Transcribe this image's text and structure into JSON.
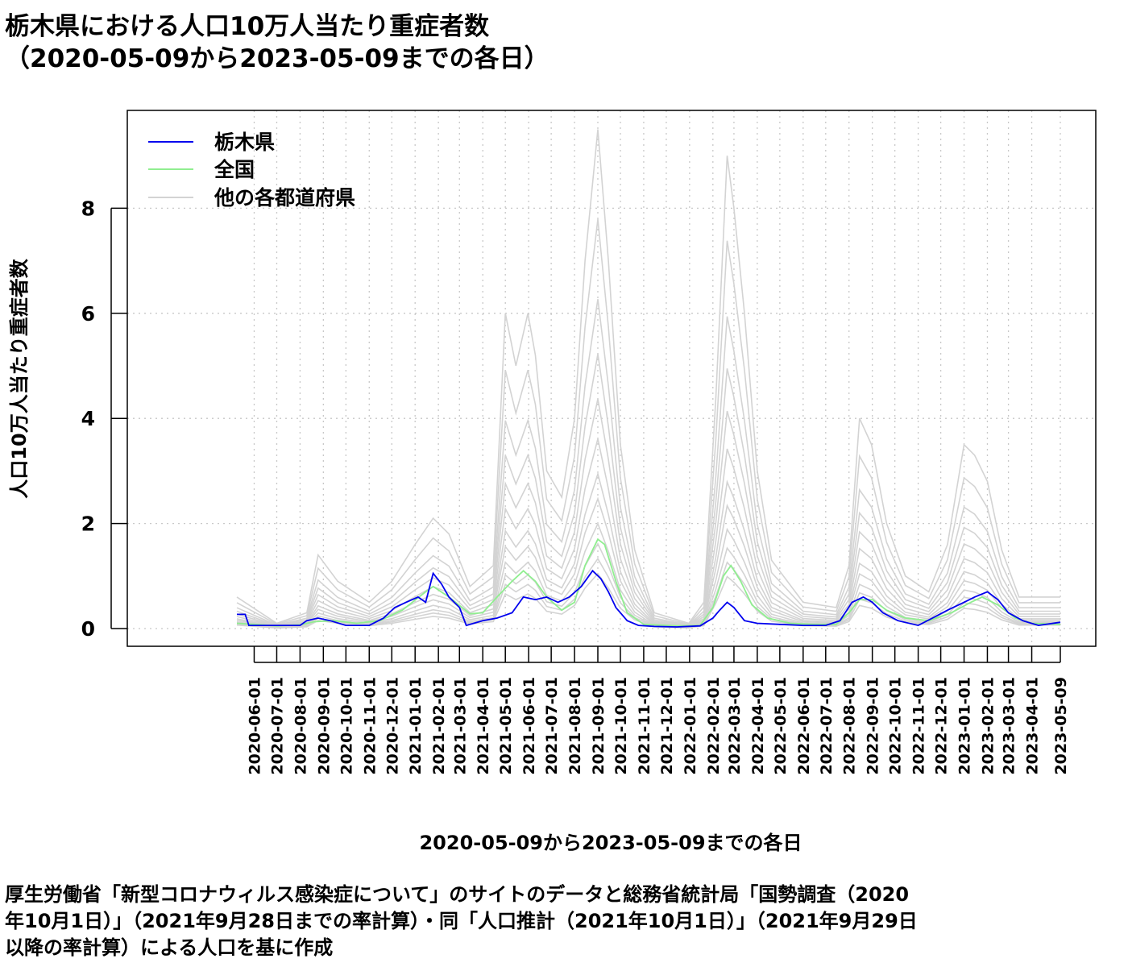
{
  "title": {
    "line1": "栃木県における人口10万人当たり重症者数",
    "line2": "（2020-05-09から2023-05-09までの各日）"
  },
  "caption": {
    "line1": "厚生労働省「新型コロナウィルス感染症について」のサイトのデータと総務省統計局「国勢調査（2020",
    "line2": "年10月1日）」（2021年9月28日までの率計算）・同「人口推計（2021年10月1日）」（2021年9月29日",
    "line3": "以降の率計算）による人口を基に作成"
  },
  "colors": {
    "tochigi": "#0000ee",
    "national": "#90ee90",
    "others": "#d3d3d3",
    "grid": "#c8c8c8"
  },
  "chart_data": {
    "type": "line",
    "xlabel": "2020-05-09から2023-05-09までの各日",
    "ylabel": "人口10万人当たり重症者数",
    "ylim": [
      0,
      9.7
    ],
    "yticks": [
      0,
      2,
      4,
      6,
      8
    ],
    "x_range": [
      "2020-05-09",
      "2023-05-09"
    ],
    "x_ticks": [
      "2020-06-01",
      "2020-07-01",
      "2020-08-01",
      "2020-09-01",
      "2020-10-01",
      "2020-11-01",
      "2020-12-01",
      "2021-01-01",
      "2021-02-01",
      "2021-03-01",
      "2021-04-01",
      "2021-05-01",
      "2021-06-01",
      "2021-07-01",
      "2021-08-01",
      "2021-09-01",
      "2021-10-01",
      "2021-11-01",
      "2021-12-01",
      "2022-01-01",
      "2022-02-01",
      "2022-03-01",
      "2022-04-01",
      "2022-05-01",
      "2022-06-01",
      "2022-07-01",
      "2022-08-01",
      "2022-09-01",
      "2022-10-01",
      "2022-11-01",
      "2022-12-01",
      "2023-01-01",
      "2023-02-01",
      "2023-03-01",
      "2023-04-01",
      "2023-05-09"
    ],
    "grid": true,
    "legend": {
      "placement": "top-left",
      "entries": [
        "栃木県",
        "全国",
        "他の各都道府県"
      ]
    },
    "series": [
      {
        "name": "栃木県",
        "x": [
          "2020-05-09",
          "2020-05-20",
          "2020-05-25",
          "2020-06-05",
          "2020-07-01",
          "2020-08-01",
          "2020-08-10",
          "2020-08-25",
          "2020-09-10",
          "2020-10-01",
          "2020-11-01",
          "2020-11-20",
          "2020-12-05",
          "2020-12-20",
          "2021-01-05",
          "2021-01-15",
          "2021-01-25",
          "2021-02-05",
          "2021-02-15",
          "2021-03-01",
          "2021-03-10",
          "2021-04-01",
          "2021-04-20",
          "2021-05-10",
          "2021-05-25",
          "2021-06-10",
          "2021-06-25",
          "2021-07-10",
          "2021-07-25",
          "2021-08-10",
          "2021-08-25",
          "2021-09-05",
          "2021-09-15",
          "2021-09-25",
          "2021-10-10",
          "2021-10-25",
          "2021-11-15",
          "2021-12-15",
          "2022-01-15",
          "2022-02-01",
          "2022-02-10",
          "2022-02-20",
          "2022-03-01",
          "2022-03-15",
          "2022-04-01",
          "2022-05-01",
          "2022-06-01",
          "2022-07-01",
          "2022-07-20",
          "2022-08-05",
          "2022-08-20",
          "2022-09-01",
          "2022-09-15",
          "2022-10-05",
          "2022-11-01",
          "2022-11-20",
          "2022-12-10",
          "2023-01-01",
          "2023-01-15",
          "2023-02-01",
          "2023-02-15",
          "2023-03-01",
          "2023-03-20",
          "2023-04-10",
          "2023-05-09"
        ],
        "values": [
          0.27,
          0.27,
          0.06,
          0.06,
          0.06,
          0.06,
          0.15,
          0.2,
          0.15,
          0.06,
          0.06,
          0.2,
          0.4,
          0.5,
          0.6,
          0.5,
          1.05,
          0.85,
          0.6,
          0.4,
          0.06,
          0.15,
          0.2,
          0.3,
          0.6,
          0.55,
          0.6,
          0.5,
          0.6,
          0.8,
          1.1,
          0.95,
          0.7,
          0.4,
          0.15,
          0.06,
          0.04,
          0.03,
          0.05,
          0.2,
          0.35,
          0.5,
          0.4,
          0.15,
          0.1,
          0.08,
          0.06,
          0.06,
          0.15,
          0.5,
          0.6,
          0.5,
          0.3,
          0.15,
          0.06,
          0.2,
          0.35,
          0.5,
          0.6,
          0.7,
          0.55,
          0.3,
          0.15,
          0.06,
          0.12
        ]
      },
      {
        "name": "全国",
        "x": [
          "2020-05-09",
          "2020-06-01",
          "2020-07-01",
          "2020-08-01",
          "2020-08-20",
          "2020-09-15",
          "2020-10-15",
          "2020-11-15",
          "2020-12-15",
          "2021-01-15",
          "2021-01-25",
          "2021-02-15",
          "2021-03-15",
          "2021-04-01",
          "2021-04-20",
          "2021-05-10",
          "2021-05-25",
          "2021-06-10",
          "2021-06-25",
          "2021-07-15",
          "2021-08-01",
          "2021-08-15",
          "2021-09-01",
          "2021-09-10",
          "2021-09-25",
          "2021-10-10",
          "2021-11-01",
          "2021-12-15",
          "2022-01-15",
          "2022-02-01",
          "2022-02-15",
          "2022-02-25",
          "2022-03-10",
          "2022-03-25",
          "2022-04-15",
          "2022-05-15",
          "2022-06-15",
          "2022-07-15",
          "2022-08-01",
          "2022-08-15",
          "2022-09-01",
          "2022-09-20",
          "2022-10-15",
          "2022-11-15",
          "2022-12-15",
          "2023-01-10",
          "2023-01-25",
          "2023-02-15",
          "2023-03-10",
          "2023-04-01",
          "2023-05-09"
        ],
        "values": [
          0.1,
          0.08,
          0.05,
          0.07,
          0.13,
          0.15,
          0.1,
          0.15,
          0.35,
          0.7,
          0.8,
          0.6,
          0.28,
          0.3,
          0.6,
          0.9,
          1.1,
          0.9,
          0.6,
          0.35,
          0.5,
          1.2,
          1.7,
          1.6,
          0.9,
          0.3,
          0.08,
          0.05,
          0.06,
          0.4,
          1.0,
          1.2,
          0.9,
          0.45,
          0.2,
          0.1,
          0.08,
          0.08,
          0.3,
          0.55,
          0.55,
          0.35,
          0.2,
          0.15,
          0.3,
          0.5,
          0.6,
          0.45,
          0.2,
          0.1,
          0.08
        ]
      },
      {
        "name": "他の各都道府県",
        "x": [
          "2020-05-09",
          "2020-07-01",
          "2020-08-10",
          "2020-08-25",
          "2020-09-20",
          "2020-11-01",
          "2020-12-01",
          "2021-01-01",
          "2021-01-25",
          "2021-02-15",
          "2021-03-15",
          "2021-04-15",
          "2021-05-01",
          "2021-05-15",
          "2021-05-31",
          "2021-06-10",
          "2021-06-25",
          "2021-07-15",
          "2021-08-01",
          "2021-08-15",
          "2021-09-01",
          "2021-09-15",
          "2021-10-01",
          "2021-10-20",
          "2021-11-15",
          "2021-12-31",
          "2022-01-20",
          "2022-02-05",
          "2022-02-20",
          "2022-03-01",
          "2022-03-15",
          "2022-04-01",
          "2022-04-20",
          "2022-06-01",
          "2022-07-15",
          "2022-08-01",
          "2022-08-15",
          "2022-08-31",
          "2022-09-20",
          "2022-10-15",
          "2022-11-15",
          "2022-12-10",
          "2023-01-01",
          "2023-01-15",
          "2023-02-01",
          "2023-02-20",
          "2023-03-15",
          "2023-05-09"
        ],
        "values": [
          0.6,
          0.1,
          0.3,
          1.4,
          0.9,
          0.5,
          0.9,
          1.6,
          2.1,
          1.8,
          0.8,
          1.2,
          6.0,
          5.0,
          6.0,
          5.2,
          3.0,
          2.5,
          4.0,
          7.0,
          9.5,
          7.0,
          3.5,
          1.5,
          0.3,
          0.1,
          0.5,
          4.4,
          9.0,
          8.0,
          6.0,
          3.0,
          1.3,
          0.5,
          0.4,
          1.2,
          4.0,
          3.5,
          2.0,
          1.0,
          0.7,
          1.6,
          3.5,
          3.3,
          2.8,
          1.5,
          0.6,
          0.6
        ]
      }
    ]
  }
}
